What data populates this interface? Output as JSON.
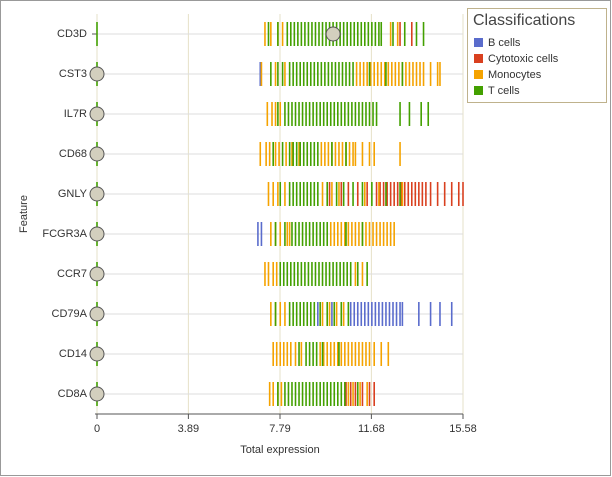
{
  "chart_data": {
    "type": "strip",
    "x_label": "Total expression",
    "y_label": "Feature",
    "legend_title": "Classifications",
    "categories": [
      "CD3D",
      "CST3",
      "IL7R",
      "CD68",
      "GNLY",
      "FCGR3A",
      "CCR7",
      "CD79A",
      "CD14",
      "CD8A"
    ],
    "xlim": [
      0,
      15.58
    ],
    "xticks": [
      0,
      3.89,
      7.79,
      11.68,
      15.58
    ],
    "grid": true,
    "handle_positions": [
      10.05,
      0,
      0,
      0,
      0,
      0,
      0,
      0,
      0,
      0
    ],
    "series": [
      {
        "name": "B cells",
        "color": "#5a6ccc",
        "values": [
          [],
          [
            6.95
          ],
          [],
          [],
          [],
          [
            6.85,
            7.0
          ],
          [],
          [
            9.4,
            10.0,
            10.8,
            10.95,
            11.1,
            11.25,
            11.4,
            11.55,
            11.7,
            11.85,
            12.0,
            12.15,
            12.3,
            12.45,
            12.6,
            12.75,
            12.9,
            13.0,
            13.7,
            14.2,
            14.6,
            15.1
          ],
          [],
          []
        ]
      },
      {
        "name": "Cytotoxic cells",
        "color": "#d9401f",
        "values": [
          [
            12.9,
            13.4
          ],
          [],
          [],
          [],
          [
            9.9,
            10.4,
            10.7,
            11.1,
            11.5,
            11.9,
            12.05,
            12.2,
            12.35,
            12.5,
            12.65,
            12.8,
            12.95,
            13.1,
            13.25,
            13.4,
            13.55,
            13.7,
            13.85,
            14.0,
            14.2,
            14.5,
            14.8,
            15.1,
            15.4,
            15.58
          ],
          [],
          [],
          [],
          [],
          [
            10.6,
            10.8,
            11.0,
            11.3,
            11.6,
            11.8
          ]
        ]
      },
      {
        "name": "Monocytes",
        "color": "#f5a300",
        "values": [
          [
            7.15,
            7.4,
            7.7,
            7.9,
            12.5,
            12.8
          ],
          [
            7.0,
            7.6,
            8.0,
            11.05,
            11.2,
            11.35,
            11.5,
            11.65,
            11.8,
            11.95,
            12.1,
            12.25,
            12.4,
            12.55,
            12.7,
            12.85,
            13.0,
            13.15,
            13.3,
            13.45,
            13.6,
            13.75,
            13.9,
            14.2,
            14.5,
            14.6
          ],
          [
            7.25,
            7.45,
            7.6,
            7.8
          ],
          [
            6.95,
            7.2,
            7.35,
            7.6,
            7.75,
            8.05,
            8.3,
            8.6,
            9.55,
            9.7,
            9.85,
            10.0,
            10.15,
            10.3,
            10.45,
            10.6,
            10.75,
            10.9,
            11.0,
            11.3,
            11.6,
            11.8,
            12.9
          ],
          [
            7.3,
            7.5,
            7.7,
            8.0,
            9.6,
            10.0,
            10.3,
            11.4,
            12.0,
            13.0
          ],
          [
            7.4,
            7.6,
            7.8,
            8.1,
            8.2,
            9.95,
            10.1,
            10.25,
            10.4,
            10.55,
            10.7,
            10.85,
            11.0,
            11.15,
            11.3,
            11.45,
            11.6,
            11.75,
            11.9,
            12.05,
            12.2,
            12.35,
            12.5,
            12.65
          ],
          [
            7.15,
            7.3,
            7.5,
            7.65,
            11.0,
            11.3
          ],
          [
            7.4,
            7.6,
            7.8,
            8.0,
            9.6,
            9.9,
            10.2,
            10.5
          ],
          [
            7.5,
            7.65,
            7.8,
            7.95,
            8.1,
            8.25,
            8.45,
            8.7,
            9.5,
            9.65,
            9.8,
            9.95,
            10.1,
            10.25,
            10.4,
            10.55,
            10.7,
            10.85,
            11.0,
            11.15,
            11.3,
            11.45,
            11.6,
            11.8,
            12.1,
            12.4
          ],
          [
            7.35,
            7.5,
            7.7,
            7.85,
            10.7,
            10.9,
            11.2,
            11.5
          ]
        ]
      },
      {
        "name": "T cells",
        "color": "#43a000",
        "values": [
          [
            0,
            7.3,
            7.7,
            8.1,
            8.25,
            8.4,
            8.55,
            8.7,
            8.85,
            9.0,
            9.15,
            9.3,
            9.45,
            9.6,
            9.75,
            9.9,
            10.05,
            10.2,
            10.35,
            10.5,
            10.65,
            10.8,
            10.95,
            11.1,
            11.25,
            11.4,
            11.55,
            11.7,
            11.85,
            12.0,
            12.1,
            12.6,
            13.1,
            13.6,
            13.9
          ],
          [
            0,
            7.4,
            7.7,
            7.9,
            8.2,
            8.35,
            8.5,
            8.65,
            8.8,
            8.95,
            9.1,
            9.25,
            9.4,
            9.55,
            9.7,
            9.85,
            10.0,
            10.15,
            10.3,
            10.45,
            10.6,
            10.75,
            10.9,
            11.6,
            12.3,
            13.0
          ],
          [
            0,
            7.7,
            8.0,
            8.15,
            8.3,
            8.45,
            8.6,
            8.75,
            8.9,
            9.05,
            9.2,
            9.35,
            9.5,
            9.65,
            9.8,
            9.95,
            10.1,
            10.25,
            10.4,
            10.55,
            10.7,
            10.85,
            11.0,
            11.15,
            11.3,
            11.45,
            11.6,
            11.75,
            11.9,
            12.9,
            13.3,
            13.8,
            14.1
          ],
          [
            0,
            7.5,
            7.9,
            8.2,
            8.35,
            8.5,
            8.65,
            8.8,
            8.95,
            9.1,
            9.25,
            9.4,
            10.0,
            10.6
          ],
          [
            0,
            7.8,
            8.2,
            8.35,
            8.5,
            8.65,
            8.8,
            8.95,
            9.1,
            9.25,
            9.4,
            9.8,
            10.2,
            10.5,
            10.9,
            11.3,
            11.7,
            12.3,
            12.9
          ],
          [
            0,
            7.6,
            8.0,
            8.3,
            8.45,
            8.6,
            8.75,
            8.9,
            9.05,
            9.2,
            9.35,
            9.5,
            9.65,
            9.8,
            10.6,
            11.3
          ],
          [
            0,
            7.8,
            7.95,
            8.1,
            8.25,
            8.4,
            8.55,
            8.7,
            8.85,
            9.0,
            9.15,
            9.3,
            9.45,
            9.6,
            9.75,
            9.9,
            10.05,
            10.2,
            10.35,
            10.5,
            10.65,
            10.8,
            11.1,
            11.5
          ],
          [
            0,
            7.6,
            8.2,
            8.35,
            8.5,
            8.65,
            8.8,
            8.95,
            9.1,
            9.25,
            9.5,
            9.8,
            10.1,
            10.4,
            10.7
          ],
          [
            0,
            8.6,
            8.9,
            9.05,
            9.2,
            9.35,
            9.6,
            10.3
          ],
          [
            0,
            7.7,
            8.0,
            8.15,
            8.3,
            8.45,
            8.6,
            8.75,
            8.9,
            9.05,
            9.2,
            9.35,
            9.5,
            9.65,
            9.8,
            9.95,
            10.1,
            10.25,
            10.4,
            10.55,
            11.1
          ]
        ]
      }
    ]
  }
}
